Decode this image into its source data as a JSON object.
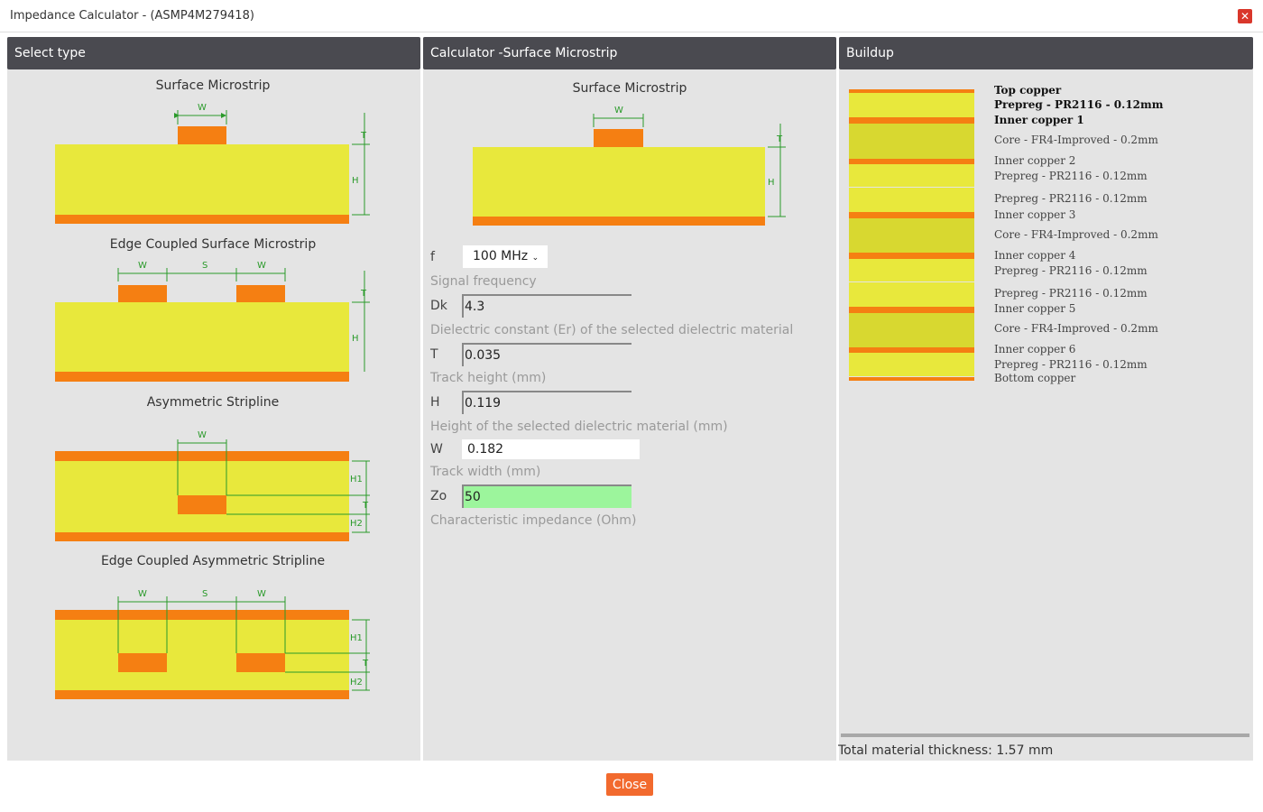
{
  "window": {
    "title": "Impedance Calculator - (ASMP4M279418)",
    "close_icon": "close-icon"
  },
  "panels": {
    "select_type": "Select type",
    "calculator": "Calculator -Surface Microstrip",
    "buildup": "Buildup"
  },
  "types": [
    {
      "title": "Surface Microstrip",
      "labels": {
        "w": "W",
        "t": "T",
        "h": "H"
      }
    },
    {
      "title": "Edge Coupled Surface Microstrip",
      "labels": {
        "w": "W",
        "s": "S",
        "t": "T",
        "h": "H"
      }
    },
    {
      "title": "Asymmetric Stripline",
      "labels": {
        "w": "W",
        "h1": "H1",
        "t": "T",
        "h2": "H2"
      }
    },
    {
      "title": "Edge Coupled Asymmetric Stripline",
      "labels": {
        "w": "W",
        "s": "S",
        "h1": "H1",
        "t": "T",
        "h2": "H2"
      }
    }
  ],
  "calculator": {
    "diagram_title": "Surface Microstrip",
    "labels": {
      "w": "W",
      "t": "T",
      "h": "H"
    },
    "f": {
      "label": "f",
      "value": "100 MHz",
      "help": "Signal frequency"
    },
    "dk": {
      "label": "Dk",
      "value": "4.3",
      "help": "Dielectric constant (Er) of the selected dielectric material"
    },
    "t": {
      "label": "T",
      "value": "0.035",
      "help": "Track height (mm)"
    },
    "h": {
      "label": "H",
      "value": "0.119",
      "help": "Height of the selected dielectric material (mm)"
    },
    "w": {
      "label": "W",
      "value": "0.182",
      "help": "Track width (mm)"
    },
    "zo": {
      "label": "Zo",
      "value": "50",
      "help": "Characteristic impedance (Ohm)"
    }
  },
  "buildup": {
    "layers": [
      {
        "type": "copper",
        "label": "Top copper",
        "bold": true
      },
      {
        "type": "prepreg",
        "label": "Prepreg - PR2116 - 0.12mm",
        "bold": true
      },
      {
        "type": "copper",
        "label": "Inner copper 1",
        "bold": true
      },
      {
        "type": "core",
        "label": "Core - FR4-Improved - 0.2mm"
      },
      {
        "type": "copper",
        "label": "Inner copper 2"
      },
      {
        "type": "prepreg",
        "label": "Prepreg - PR2116 - 0.12mm"
      },
      {
        "type": "prepreg",
        "label": "Prepreg - PR2116 - 0.12mm"
      },
      {
        "type": "copper",
        "label": "Inner copper 3"
      },
      {
        "type": "core",
        "label": "Core - FR4-Improved - 0.2mm"
      },
      {
        "type": "copper",
        "label": "Inner copper 4"
      },
      {
        "type": "prepreg",
        "label": "Prepreg - PR2116 - 0.12mm"
      },
      {
        "type": "prepreg",
        "label": "Prepreg - PR2116 - 0.12mm"
      },
      {
        "type": "copper",
        "label": "Inner copper 5"
      },
      {
        "type": "core",
        "label": "Core - FR4-Improved - 0.2mm"
      },
      {
        "type": "copper",
        "label": "Inner copper 6"
      },
      {
        "type": "prepreg",
        "label": "Prepreg - PR2116 - 0.12mm"
      },
      {
        "type": "copper",
        "label": "Bottom copper"
      }
    ],
    "total": "Total material thickness: 1.57 mm"
  },
  "colors": {
    "copper": "#f57f12",
    "prepreg": "#e8e83c",
    "core": "#d8d830",
    "accent": "#f26a2e",
    "zo_bg": "#9cf59c"
  },
  "footer": {
    "close_label": "Close"
  }
}
